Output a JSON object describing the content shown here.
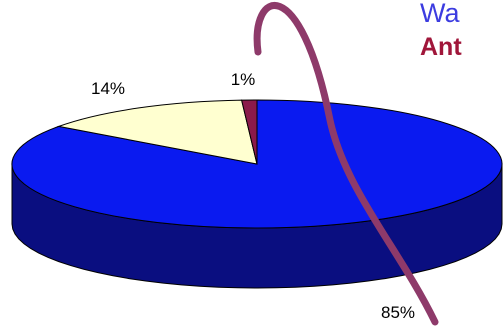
{
  "headings": {
    "line1": "Wa",
    "line2": "Ant"
  },
  "colors": {
    "heading1": "#3c3ce0",
    "heading2": "#a0163a",
    "arc": "#8e3a6a"
  },
  "chart_data": {
    "type": "pie",
    "style": "3d",
    "slices": [
      {
        "label": "85%",
        "value": 85,
        "color": "#0a1af0",
        "side_color": "#0a0e80"
      },
      {
        "label": "14%",
        "value": 14,
        "color": "#ffffd0",
        "side_color": "#b8b890"
      },
      {
        "label": "1%",
        "value": 1,
        "color": "#8b1a4a",
        "side_color": "#4a0a22"
      }
    ]
  }
}
